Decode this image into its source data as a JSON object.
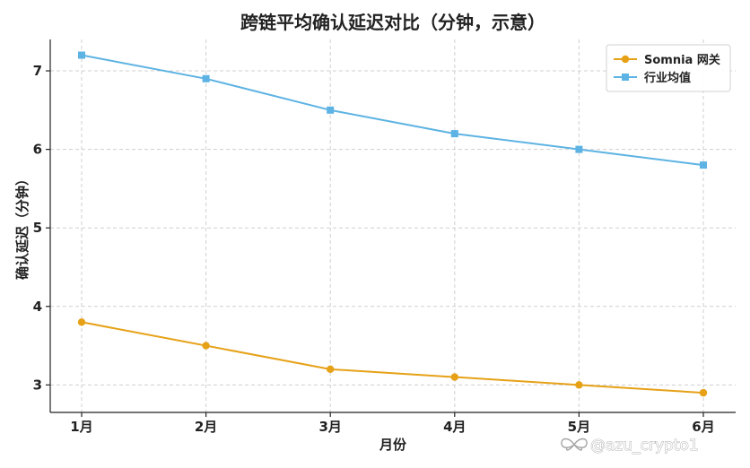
{
  "chart_data": {
    "type": "line",
    "title": "跨链平均确认延迟对比（分钟，示意）",
    "xlabel": "月份",
    "ylabel": "确认延迟（分钟）",
    "categories": [
      "1月",
      "2月",
      "3月",
      "4月",
      "5月",
      "6月"
    ],
    "ylim": [
      2.65,
      7.4
    ],
    "yticks": [
      3,
      4,
      5,
      6,
      7
    ],
    "grid": true,
    "legend_position": "top-right",
    "series": [
      {
        "name": "Somnia 网关",
        "values": [
          3.8,
          3.5,
          3.2,
          3.1,
          3.0,
          2.9
        ],
        "color": "#E6A117",
        "marker": "circle"
      },
      {
        "name": "行业均值",
        "values": [
          7.2,
          6.9,
          6.5,
          6.2,
          6.0,
          5.8
        ],
        "color": "#5DB3E3",
        "marker": "square"
      }
    ]
  },
  "watermark": {
    "text": "@azu_crypto1",
    "icon": "butterfly-logo-icon"
  }
}
